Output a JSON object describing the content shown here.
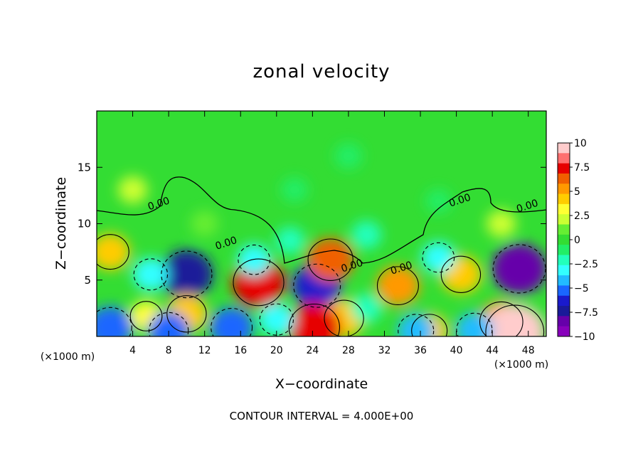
{
  "chart_data": {
    "type": "heatmap",
    "title": "zonal velocity",
    "xlabel": "X−coordinate",
    "ylabel": "Z−coordinate",
    "x_unit": "(×1000 m)",
    "y_unit": "(×1000 m)",
    "xlim": [
      0,
      50
    ],
    "ylim": [
      0,
      20
    ],
    "x_ticks": [
      4,
      8,
      12,
      16,
      20,
      24,
      28,
      32,
      36,
      40,
      44,
      48
    ],
    "y_ticks": [
      5,
      10,
      15
    ],
    "contour_interval_note": "CONTOUR INTERVAL = 4.000E+00",
    "contour_labels": [
      "0.00",
      "0.00",
      "0.00",
      "0.00",
      "0.00",
      "0.00"
    ],
    "colorbar": {
      "ticks": [
        "10",
        "7.5",
        "5",
        "2.5",
        "0",
        "−2.5",
        "−5",
        "−7.5",
        "−10"
      ],
      "range": [
        -10,
        10
      ],
      "colors": [
        "#ffcccc",
        "#ff7070",
        "#e60000",
        "#f06000",
        "#ff9900",
        "#ffcc00",
        "#ffff33",
        "#ccff33",
        "#66ee33",
        "#33dd33",
        "#22ee66",
        "#22ffbb",
        "#33ffff",
        "#22bbff",
        "#1a66ff",
        "#1a1acc",
        "#1a1a99",
        "#6600aa",
        "#8800bb"
      ]
    },
    "features": [
      {
        "x": 1.5,
        "z": 7.5,
        "value": 4.5
      },
      {
        "x": 10.0,
        "z": 5.5,
        "value": -8.0
      },
      {
        "x": 6.0,
        "z": 5.5,
        "value": -3.5
      },
      {
        "x": 18.0,
        "z": 4.8,
        "value": 8.0
      },
      {
        "x": 17.5,
        "z": 6.8,
        "value": -3.0
      },
      {
        "x": 10.0,
        "z": 2.0,
        "value": 5.0
      },
      {
        "x": 5.5,
        "z": 1.8,
        "value": 3.0
      },
      {
        "x": 24.5,
        "z": 4.5,
        "value": -7.0
      },
      {
        "x": 26.0,
        "z": 6.8,
        "value": 6.5
      },
      {
        "x": 27.5,
        "z": 1.6,
        "value": 5.0
      },
      {
        "x": 24.2,
        "z": 0.8,
        "value": 8.0
      },
      {
        "x": 33.5,
        "z": 4.5,
        "value": 5.5
      },
      {
        "x": 40.5,
        "z": 5.5,
        "value": 5.0
      },
      {
        "x": 47.0,
        "z": 6.0,
        "value": -8.5
      },
      {
        "x": 45.0,
        "z": 1.3,
        "value": 6.0
      },
      {
        "x": 46.5,
        "z": 0.4,
        "value": 10.0
      },
      {
        "x": 1.5,
        "z": 0.8,
        "value": -6.0
      },
      {
        "x": 8.0,
        "z": 0.5,
        "value": -5.0
      },
      {
        "x": 15.0,
        "z": 0.8,
        "value": -5.5
      },
      {
        "x": 20.0,
        "z": 1.5,
        "value": -3.5
      },
      {
        "x": 30.0,
        "z": 2.5,
        "value": -2.5
      },
      {
        "x": 37.0,
        "z": 0.5,
        "value": 4.0
      },
      {
        "x": 35.5,
        "z": 0.5,
        "value": -4.0
      },
      {
        "x": 42.0,
        "z": 0.6,
        "value": -4.0
      },
      {
        "x": 38.0,
        "z": 7.0,
        "value": -3.0
      },
      {
        "x": 30.0,
        "z": 9.0,
        "value": -2.2
      },
      {
        "x": 21.5,
        "z": 8.5,
        "value": -2.0
      },
      {
        "x": 28.0,
        "z": 16.0,
        "value": -1.5
      },
      {
        "x": 22.0,
        "z": 13.0,
        "value": -1.3
      },
      {
        "x": 38.0,
        "z": 12.0,
        "value": -1.0
      },
      {
        "x": 4.0,
        "z": 13.0,
        "value": 2.0
      },
      {
        "x": 12.0,
        "z": 10.0,
        "value": 1.5
      },
      {
        "x": 45.0,
        "z": 10.0,
        "value": 2.0
      }
    ]
  }
}
